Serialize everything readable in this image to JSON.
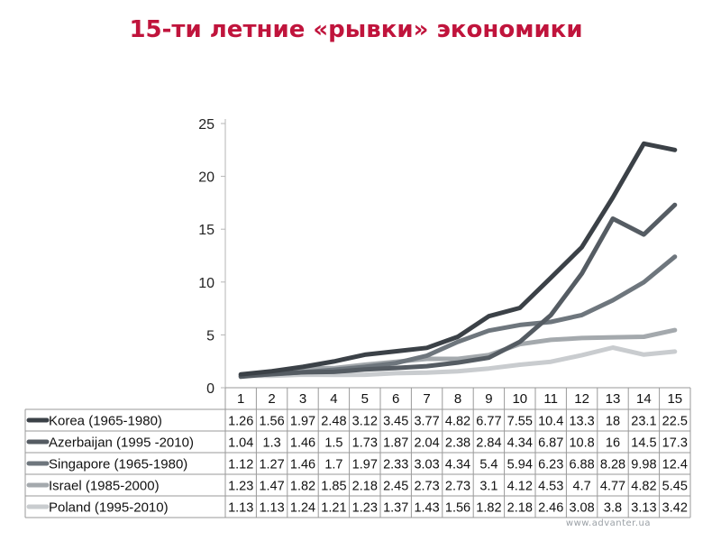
{
  "title": "15-ти летние «рывки» экономики",
  "footer": "www.advanter.ua",
  "colors": {
    "title": "#c0143c",
    "korea": "#3b4147",
    "azerbaijan": "#555c63",
    "singapore": "#6e767d",
    "israel": "#a4a9ad",
    "poland": "#c9cccf"
  },
  "chart_data": {
    "type": "line",
    "x": [
      "1",
      "2",
      "3",
      "4",
      "5",
      "6",
      "7",
      "8",
      "9",
      "10",
      "11",
      "12",
      "13",
      "14",
      "15"
    ],
    "ylim": [
      0,
      25
    ],
    "yticks": [
      "0",
      "5",
      "10",
      "15",
      "20",
      "25"
    ],
    "grid": false,
    "legend": "data-table",
    "series": [
      {
        "name": "Korea (1965-1980)",
        "values": [
          1.26,
          1.56,
          1.97,
          2.48,
          3.12,
          3.45,
          3.77,
          4.82,
          6.77,
          7.55,
          10.4,
          13.3,
          18,
          23.1,
          22.5
        ],
        "labels": [
          "1.26",
          "1.56",
          "1.97",
          "2.48",
          "3.12",
          "3.45",
          "3.77",
          "4.82",
          "6.77",
          "7.55",
          "10.4",
          "13.3",
          "18",
          "23.1",
          "22.5"
        ]
      },
      {
        "name": "Azerbaijan (1995 -2010)",
        "values": [
          1.04,
          1.3,
          1.46,
          1.5,
          1.73,
          1.87,
          2.04,
          2.38,
          2.84,
          4.34,
          6.87,
          10.8,
          16,
          14.5,
          17.3
        ],
        "labels": [
          "1.04",
          "1.3",
          "1.46",
          "1.5",
          "1.73",
          "1.87",
          "2.04",
          "2.38",
          "2.84",
          "4.34",
          "6.87",
          "10.8",
          "16",
          "14.5",
          "17.3"
        ]
      },
      {
        "name": "Singapore (1965-1980)",
        "values": [
          1.12,
          1.27,
          1.46,
          1.7,
          1.97,
          2.33,
          3.03,
          4.34,
          5.4,
          5.94,
          6.23,
          6.88,
          8.28,
          9.98,
          12.4
        ],
        "labels": [
          "1.12",
          "1.27",
          "1.46",
          "1.7",
          "1.97",
          "2.33",
          "3.03",
          "4.34",
          "5.4",
          "5.94",
          "6.23",
          "6.88",
          "8.28",
          "9.98",
          "12.4"
        ]
      },
      {
        "name": "Israel (1985-2000)",
        "values": [
          1.23,
          1.47,
          1.82,
          1.85,
          2.18,
          2.45,
          2.73,
          2.73,
          3.1,
          4.12,
          4.53,
          4.7,
          4.77,
          4.82,
          5.45
        ],
        "labels": [
          "1.23",
          "1.47",
          "1.82",
          "1.85",
          "2.18",
          "2.45",
          "2.73",
          "2.73",
          "3.1",
          "4.12",
          "4.53",
          "4.7",
          "4.77",
          "4.82",
          "5.45"
        ]
      },
      {
        "name": "Poland (1995-2010)",
        "values": [
          1.13,
          1.13,
          1.24,
          1.21,
          1.23,
          1.37,
          1.43,
          1.56,
          1.82,
          2.18,
          2.46,
          3.08,
          3.8,
          3.13,
          3.42
        ],
        "labels": [
          "1.13",
          "1.13",
          "1.24",
          "1.21",
          "1.23",
          "1.37",
          "1.43",
          "1.56",
          "1.82",
          "2.18",
          "2.46",
          "3.08",
          "3.8",
          "3.13",
          "3.42"
        ]
      }
    ]
  }
}
